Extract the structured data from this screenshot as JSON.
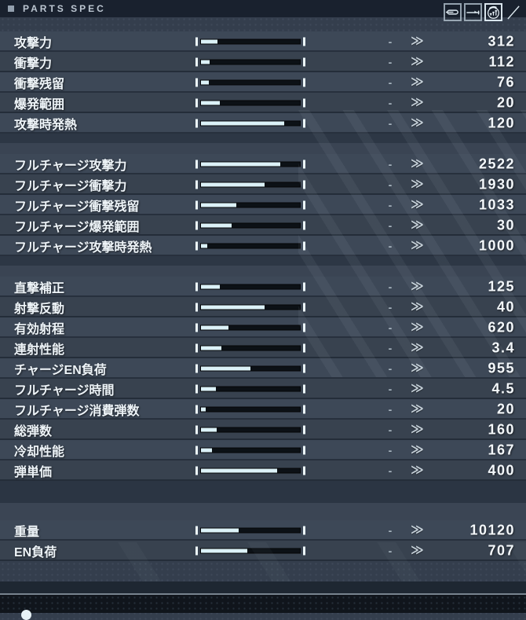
{
  "header": {
    "bullet": "■",
    "title": "PARTS SPEC",
    "type_icons": [
      {
        "name": "projectile-capsule-icon"
      },
      {
        "name": "trajectory-arrow-icon"
      },
      {
        "name": "heat-rise-icon"
      },
      {
        "name": "clipped-diagonal-icon"
      }
    ]
  },
  "glyphs": {
    "dash": "-",
    "chevron": "≫"
  },
  "stats": {
    "groups": [
      {
        "rows": [
          {
            "label": "攻撃力",
            "value": "312",
            "fill": 0.17
          },
          {
            "label": "衝撃力",
            "value": "112",
            "fill": 0.09
          },
          {
            "label": "衝撃残留",
            "value": "76",
            "fill": 0.08
          },
          {
            "label": "爆発範囲",
            "value": "20",
            "fill": 0.19
          },
          {
            "label": "攻撃時発熱",
            "value": "120",
            "fill": 0.84
          }
        ]
      },
      {
        "rows": [
          {
            "label": "フルチャージ攻撃力",
            "value": "2522",
            "fill": 0.8
          },
          {
            "label": "フルチャージ衝撃力",
            "value": "1930",
            "fill": 0.64
          },
          {
            "label": "フルチャージ衝撃残留",
            "value": "1033",
            "fill": 0.36
          },
          {
            "label": "フルチャージ爆発範囲",
            "value": "30",
            "fill": 0.31
          },
          {
            "label": "フルチャージ攻撃時発熱",
            "value": "1000",
            "fill": 0.06
          }
        ]
      },
      {
        "rows": [
          {
            "label": "直撃補正",
            "value": "125",
            "fill": 0.19
          },
          {
            "label": "射撃反動",
            "value": "40",
            "fill": 0.64
          },
          {
            "label": "有効射程",
            "value": "620",
            "fill": 0.28
          },
          {
            "label": "連射性能",
            "value": "3.4",
            "fill": 0.21
          },
          {
            "label": "チャージEN負荷",
            "value": "955",
            "fill": 0.5
          },
          {
            "label": "フルチャージ時間",
            "value": "4.5",
            "fill": 0.15
          },
          {
            "label": "フルチャージ消費弾数",
            "value": "20",
            "fill": 0.05
          },
          {
            "label": "総弾数",
            "value": "160",
            "fill": 0.16
          },
          {
            "label": "冷却性能",
            "value": "167",
            "fill": 0.11
          },
          {
            "label": "弾単価",
            "value": "400",
            "fill": 0.77
          }
        ]
      },
      {
        "rows": [
          {
            "label": "重量",
            "value": "10120",
            "fill": 0.38
          },
          {
            "label": "EN負荷",
            "value": "707",
            "fill": 0.47
          }
        ]
      }
    ]
  },
  "colors": {
    "header_bg": "#19212e",
    "body_bg": "#343e4d",
    "row_bg": "#3d4857",
    "row_alt_bg": "#38424f",
    "bar_track": "#0c1116",
    "bar_fill": "#dcf2f8",
    "label_text": "#eef4f8",
    "value_text": "#f4f8fb",
    "divider_line": "#78848f",
    "footer_bg": "#10151c"
  }
}
